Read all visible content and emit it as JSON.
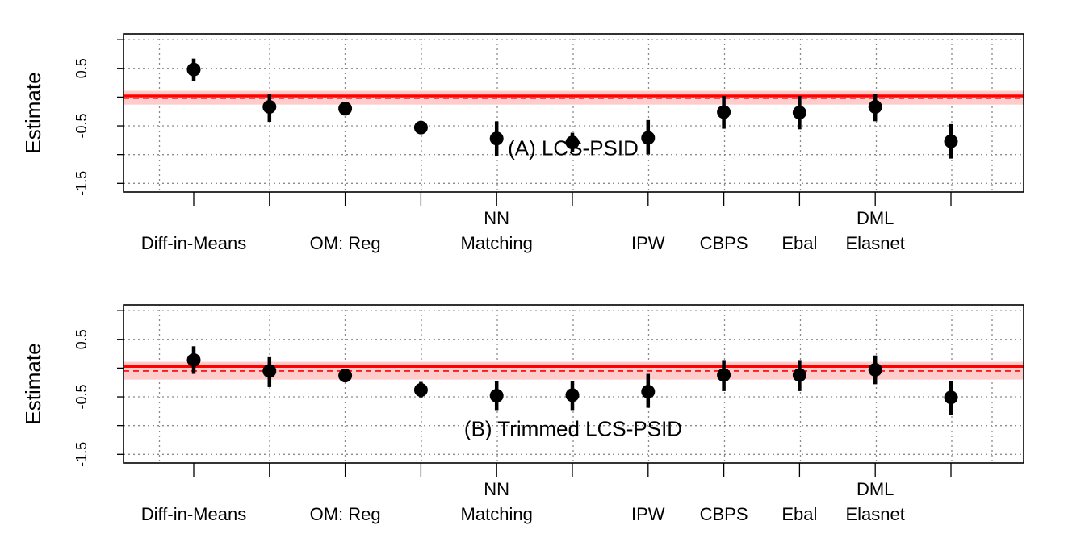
{
  "chart_data": [
    {
      "type": "scatter",
      "title": "(A) LCS-PSID",
      "ylabel": "Estimate",
      "ylim": [
        -1.65,
        1.1
      ],
      "yticks": [
        -1.5,
        -1,
        -0.5,
        0,
        0.5,
        1
      ],
      "ytick_labels": [
        "-1.5",
        "",
        "-0.5",
        "",
        "0.5",
        ""
      ],
      "x_labels": [
        {
          "pos": 1,
          "lines": [
            "Diff-in-Means"
          ]
        },
        {
          "pos": 3,
          "lines": [
            "OM: Reg"
          ]
        },
        {
          "pos": 5,
          "lines": [
            "NN",
            "Matching"
          ]
        },
        {
          "pos": 7,
          "lines": [
            "IPW"
          ]
        },
        {
          "pos": 8,
          "lines": [
            "CBPS"
          ]
        },
        {
          "pos": 9,
          "lines": [
            "Ebal"
          ]
        },
        {
          "pos": 10,
          "lines": [
            "DML",
            "Elasnet"
          ]
        }
      ],
      "reference": {
        "line": 0.02,
        "dashed": -0.02,
        "band": [
          -0.13,
          0.11
        ],
        "color": "#ff0000",
        "band_color": "#ffcccc"
      },
      "grid": true,
      "points": [
        {
          "x": 1,
          "y": 0.48,
          "lo": 0.28,
          "hi": 0.67
        },
        {
          "x": 2,
          "y": -0.17,
          "lo": -0.43,
          "hi": 0.05
        },
        {
          "x": 3,
          "y": -0.2,
          "lo": -0.32,
          "hi": -0.08
        },
        {
          "x": 4,
          "y": -0.53,
          "lo": -0.63,
          "hi": -0.42
        },
        {
          "x": 5,
          "y": -0.72,
          "lo": -1.02,
          "hi": -0.42
        },
        {
          "x": 6,
          "y": -0.79,
          "lo": -0.95,
          "hi": -0.62
        },
        {
          "x": 7,
          "y": -0.71,
          "lo": -1.0,
          "hi": -0.4
        },
        {
          "x": 8,
          "y": -0.26,
          "lo": -0.55,
          "hi": 0.02
        },
        {
          "x": 9,
          "y": -0.27,
          "lo": -0.56,
          "hi": 0.02
        },
        {
          "x": 10,
          "y": -0.17,
          "lo": -0.42,
          "hi": 0.06
        },
        {
          "x": 11,
          "y": -0.77,
          "lo": -1.07,
          "hi": -0.47
        }
      ]
    },
    {
      "type": "scatter",
      "title": "(B) Trimmed LCS-PSID",
      "ylabel": "Estimate",
      "ylim": [
        -1.65,
        1.1
      ],
      "yticks": [
        -1.5,
        -1,
        -0.5,
        0,
        0.5,
        1
      ],
      "ytick_labels": [
        "-1.5",
        "",
        "-0.5",
        "",
        "0.5",
        ""
      ],
      "x_labels": [
        {
          "pos": 1,
          "lines": [
            "Diff-in-Means"
          ]
        },
        {
          "pos": 3,
          "lines": [
            "OM: Reg"
          ]
        },
        {
          "pos": 5,
          "lines": [
            "NN",
            "Matching"
          ]
        },
        {
          "pos": 7,
          "lines": [
            "IPW"
          ]
        },
        {
          "pos": 8,
          "lines": [
            "CBPS"
          ]
        },
        {
          "pos": 9,
          "lines": [
            "Ebal"
          ]
        },
        {
          "pos": 10,
          "lines": [
            "DML",
            "Elasnet"
          ]
        }
      ],
      "reference": {
        "line": 0.03,
        "dashed": -0.05,
        "band": [
          -0.2,
          0.11
        ],
        "color": "#ff0000",
        "band_color": "#ffcccc"
      },
      "grid": true,
      "points": [
        {
          "x": 1,
          "y": 0.14,
          "lo": -0.1,
          "hi": 0.38
        },
        {
          "x": 2,
          "y": -0.05,
          "lo": -0.33,
          "hi": 0.19
        },
        {
          "x": 3,
          "y": -0.13,
          "lo": -0.24,
          "hi": -0.02
        },
        {
          "x": 4,
          "y": -0.38,
          "lo": -0.51,
          "hi": -0.24
        },
        {
          "x": 5,
          "y": -0.48,
          "lo": -0.73,
          "hi": -0.22
        },
        {
          "x": 6,
          "y": -0.47,
          "lo": -0.73,
          "hi": -0.22
        },
        {
          "x": 7,
          "y": -0.41,
          "lo": -0.69,
          "hi": -0.1
        },
        {
          "x": 8,
          "y": -0.12,
          "lo": -0.4,
          "hi": 0.14
        },
        {
          "x": 9,
          "y": -0.12,
          "lo": -0.4,
          "hi": 0.14
        },
        {
          "x": 10,
          "y": -0.03,
          "lo": -0.28,
          "hi": 0.22
        },
        {
          "x": 11,
          "y": -0.51,
          "lo": -0.81,
          "hi": -0.22
        }
      ]
    }
  ]
}
